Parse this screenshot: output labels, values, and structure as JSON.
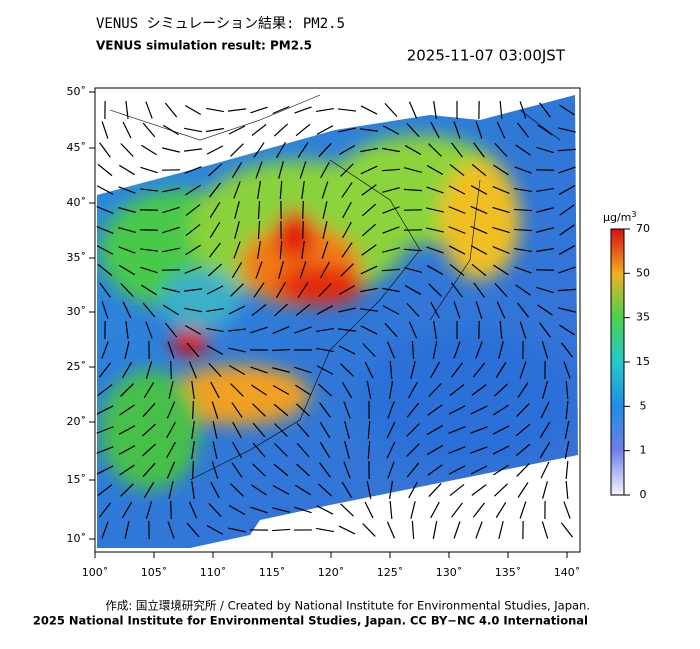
{
  "header": {
    "title_jp": "VENUS シミュレーション結果: PM2.5",
    "title_en": "VENUS simulation result: PM2.5",
    "timestamp": "2025-11-07 03:00JST"
  },
  "map": {
    "lat_labels": [
      "50˚",
      "45˚",
      "40˚",
      "35˚",
      "30˚",
      "25˚",
      "20˚",
      "15˚",
      "10˚"
    ],
    "lon_labels": [
      "100˚",
      "105˚",
      "110˚",
      "115˚",
      "120˚",
      "125˚",
      "130˚",
      "135˚",
      "140˚"
    ]
  },
  "colorbar": {
    "unit": "μg/m",
    "unit_sup": "3",
    "ticks": [
      "70",
      "50",
      "35",
      "15",
      "5",
      "1",
      "0"
    ]
  },
  "footer": {
    "credit": "作成: 国立環境研究所 / Created by National Institute for Environmental Studies, Japan.",
    "license": "2025 National Institute for Environmental Studies, Japan. CC BY−NC 4.0 International"
  }
}
